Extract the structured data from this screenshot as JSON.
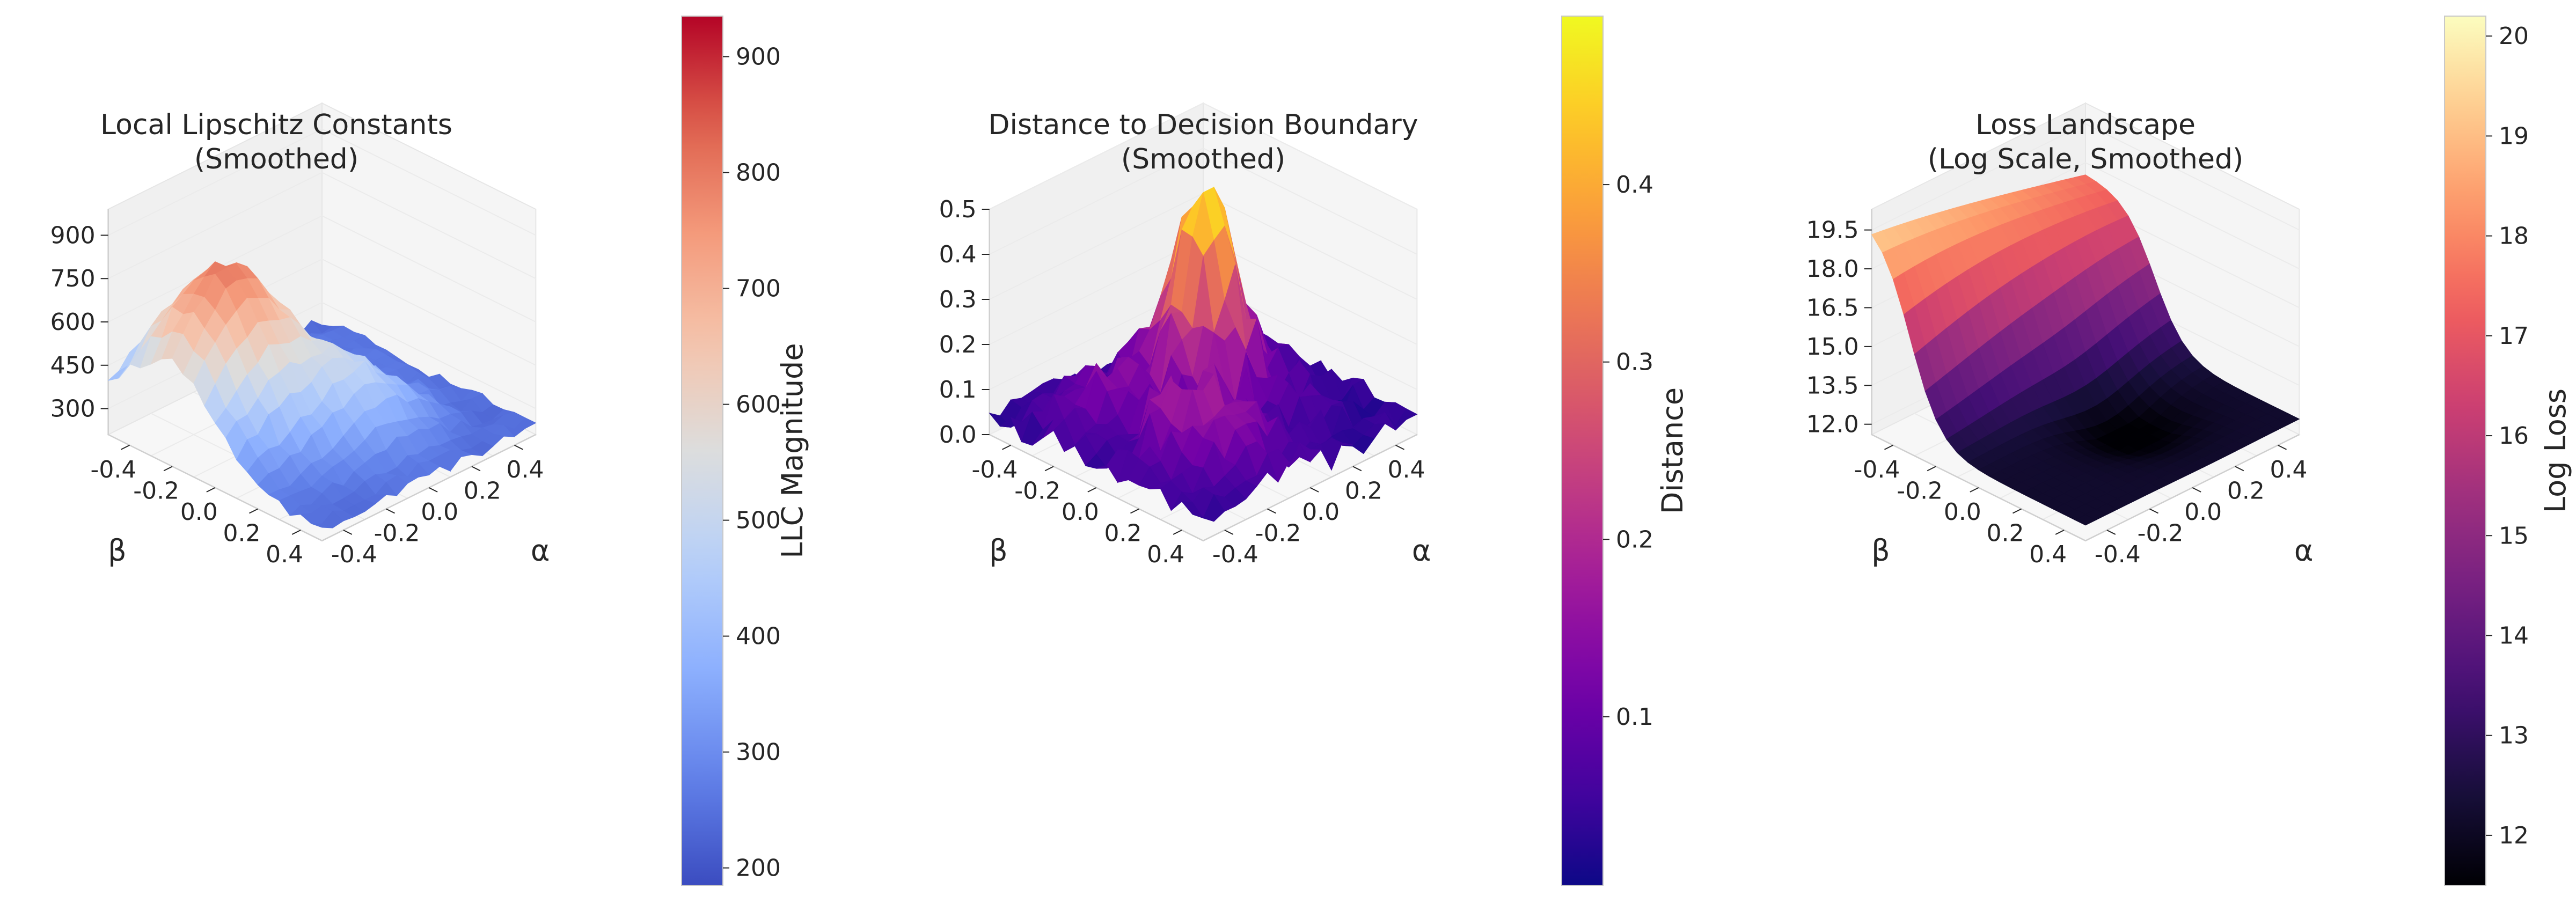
{
  "chart_data": [
    {
      "type": "surface3d",
      "title": "Local Lipschitz Constants\n(Smoothed)",
      "xlabel": "α",
      "ylabel": "β",
      "colorbar_label": "LLC Magnitude",
      "colormap": "coolwarm",
      "x_ticks": [
        "-0.4",
        "-0.2",
        "0.0",
        "0.2",
        "0.4"
      ],
      "y_ticks": [
        "-0.4",
        "-0.2",
        "0.0",
        "0.2",
        "0.4"
      ],
      "z_ticks": [
        300,
        450,
        600,
        750,
        900
      ],
      "zlim": [
        210,
        990
      ],
      "colorbar_ticks": [
        200,
        300,
        400,
        500,
        600,
        700,
        800,
        900
      ],
      "colorbar_range": [
        185,
        935
      ],
      "surface_kind": "llc"
    },
    {
      "type": "surface3d",
      "title": "Distance to Decision Boundary\n(Smoothed)",
      "xlabel": "α",
      "ylabel": "β",
      "colorbar_label": "Distance",
      "colormap": "plasma",
      "x_ticks": [
        "-0.4",
        "-0.2",
        "0.0",
        "0.2",
        "0.4"
      ],
      "y_ticks": [
        "-0.4",
        "-0.2",
        "0.0",
        "0.2",
        "0.4"
      ],
      "z_ticks": [
        "0.0",
        "0.1",
        "0.2",
        "0.3",
        "0.4",
        "0.5"
      ],
      "z_tick_values": [
        0.0,
        0.1,
        0.2,
        0.3,
        0.4,
        0.5
      ],
      "zlim": [
        0.0,
        0.5
      ],
      "colorbar_ticks": [
        "0.1",
        "0.2",
        "0.3",
        "0.4"
      ],
      "colorbar_tick_values": [
        0.1,
        0.2,
        0.3,
        0.4
      ],
      "colorbar_range": [
        0.005,
        0.495
      ],
      "surface_kind": "dist"
    },
    {
      "type": "surface3d",
      "title": "Loss Landscape\n(Log Scale, Smoothed)",
      "xlabel": "α",
      "ylabel": "β",
      "colorbar_label": "Log Loss",
      "colormap": "magma",
      "x_ticks": [
        "-0.4",
        "-0.2",
        "0.0",
        "0.2",
        "0.4"
      ],
      "y_ticks": [
        "-0.4",
        "-0.2",
        "0.0",
        "0.2",
        "0.4"
      ],
      "z_ticks": [
        "12.0",
        "13.5",
        "15.0",
        "16.5",
        "18.0",
        "19.5"
      ],
      "z_tick_values": [
        12.0,
        13.5,
        15.0,
        16.5,
        18.0,
        19.5
      ],
      "zlim": [
        11.6,
        20.3
      ],
      "colorbar_ticks": [
        12,
        13,
        14,
        15,
        16,
        17,
        18,
        19,
        20
      ],
      "colorbar_range": [
        11.5,
        20.2
      ],
      "surface_kind": "loss"
    }
  ]
}
